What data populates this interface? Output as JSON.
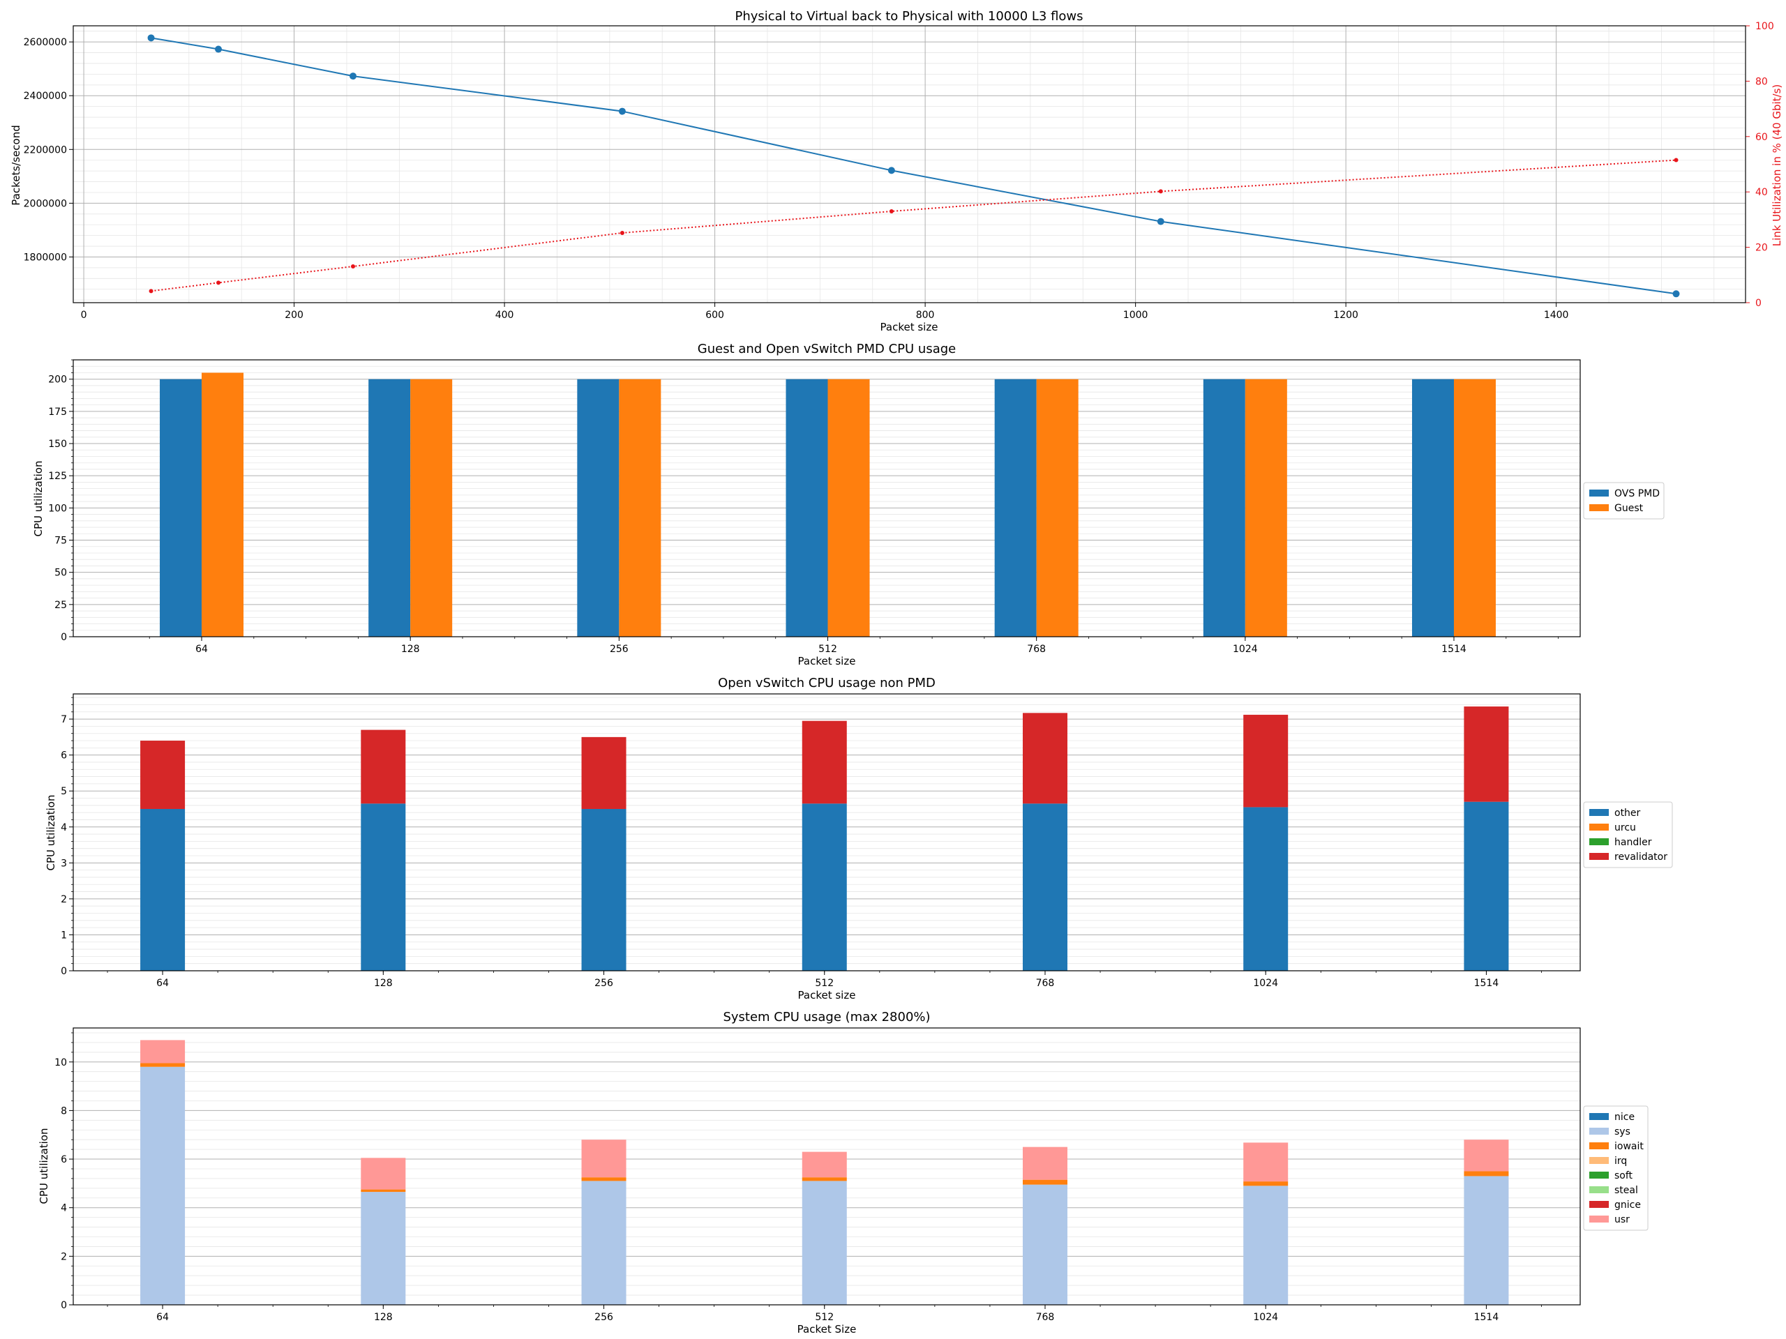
{
  "colors": {
    "blue": "#1f77b4",
    "orange": "#ff7f0e",
    "green": "#2ca02c",
    "red": "#d62728",
    "lightblue": "#aec7e8",
    "lightorange": "#ffbb78",
    "lightgreen": "#98df8a",
    "pink": "#ff9896",
    "secondary_axis": "#e8141a",
    "grid_major": "#b0b0b0",
    "grid_minor": "#e6e6e6"
  },
  "chart_data": [
    {
      "type": "line",
      "title": "Physical to Virtual back to Physical with 10000 L3 flows",
      "xlabel": "Packet size",
      "ylabel": "Packets/second",
      "y2label": "Link Utilization in % (40 Gbit/s)",
      "xlim": [
        -10,
        1580
      ],
      "ylim": [
        1630000,
        2660000
      ],
      "y2lim": [
        0,
        100
      ],
      "xticks": [
        0,
        200,
        400,
        600,
        800,
        1000,
        1200,
        1400
      ],
      "yticks": [
        1800000,
        2000000,
        2200000,
        2400000,
        2600000
      ],
      "y2ticks": [
        0,
        20,
        40,
        60,
        80,
        100
      ],
      "x": [
        64,
        128,
        256,
        512,
        768,
        1024,
        1514
      ],
      "series": [
        {
          "name": "Packets/second",
          "axis": "left",
          "style": "solid",
          "values": [
            2615000,
            2573000,
            2473000,
            2342000,
            2122000,
            1932000,
            1663000
          ]
        },
        {
          "name": "Link Utilization",
          "axis": "right",
          "style": "dotted",
          "values": [
            4.2,
            7.2,
            13.1,
            25.2,
            33.0,
            40.2,
            51.5
          ]
        }
      ],
      "grid": true
    },
    {
      "type": "bar",
      "title": "Guest and Open vSwitch PMD CPU usage",
      "xlabel": "Packet size",
      "ylabel": "CPU utilization",
      "ylim": [
        0,
        215
      ],
      "yticks": [
        0,
        25,
        50,
        75,
        100,
        125,
        150,
        175,
        200
      ],
      "categories": [
        "64",
        "128",
        "256",
        "512",
        "768",
        "1024",
        "1514"
      ],
      "series": [
        {
          "name": "OVS PMD",
          "color": "#1f77b4",
          "values": [
            200,
            200,
            200,
            200,
            200,
            200,
            200
          ]
        },
        {
          "name": "Guest",
          "color": "#ff7f0e",
          "values": [
            205,
            200,
            200,
            200,
            200,
            200,
            200
          ]
        }
      ],
      "legend": "right",
      "grid": true
    },
    {
      "type": "bar",
      "stacked": true,
      "title": "Open vSwitch CPU usage non PMD",
      "xlabel": "Packet size",
      "ylabel": "CPU utilization",
      "ylim": [
        0,
        7.7
      ],
      "yticks": [
        0,
        1,
        2,
        3,
        4,
        5,
        6,
        7
      ],
      "categories": [
        "64",
        "128",
        "256",
        "512",
        "768",
        "1024",
        "1514"
      ],
      "series": [
        {
          "name": "other",
          "color": "#1f77b4",
          "values": [
            4.5,
            4.65,
            4.5,
            4.65,
            4.65,
            4.55,
            4.7
          ]
        },
        {
          "name": "urcu",
          "color": "#ff7f0e",
          "values": [
            0,
            0,
            0,
            0,
            0,
            0,
            0
          ]
        },
        {
          "name": "handler",
          "color": "#2ca02c",
          "values": [
            0,
            0,
            0,
            0,
            0,
            0,
            0
          ]
        },
        {
          "name": "revalidator",
          "color": "#d62728",
          "values": [
            1.9,
            2.05,
            2.0,
            2.3,
            2.52,
            2.57,
            2.65
          ]
        }
      ],
      "legend": "right",
      "grid": true
    },
    {
      "type": "bar",
      "stacked": true,
      "title": "System CPU usage (max 2800%)",
      "xlabel": "Packet Size",
      "ylabel": "CPU utilization",
      "ylim": [
        0,
        11.4
      ],
      "yticks": [
        0,
        2,
        4,
        6,
        8,
        10
      ],
      "categories": [
        "64",
        "128",
        "256",
        "512",
        "768",
        "1024",
        "1514"
      ],
      "series": [
        {
          "name": "nice",
          "color": "#1f77b4",
          "values": [
            0,
            0,
            0,
            0,
            0,
            0,
            0
          ]
        },
        {
          "name": "sys",
          "color": "#aec7e8",
          "values": [
            9.8,
            4.65,
            5.1,
            5.1,
            4.95,
            4.9,
            5.3
          ]
        },
        {
          "name": "iowait",
          "color": "#ff7f0e",
          "values": [
            0.15,
            0.1,
            0.15,
            0.15,
            0.2,
            0.18,
            0.2
          ]
        },
        {
          "name": "irq",
          "color": "#ffbb78",
          "values": [
            0,
            0,
            0,
            0,
            0,
            0,
            0
          ]
        },
        {
          "name": "soft",
          "color": "#2ca02c",
          "values": [
            0,
            0,
            0,
            0,
            0,
            0,
            0
          ]
        },
        {
          "name": "steal",
          "color": "#98df8a",
          "values": [
            0,
            0,
            0,
            0,
            0,
            0,
            0
          ]
        },
        {
          "name": "gnice",
          "color": "#d62728",
          "values": [
            0,
            0,
            0,
            0,
            0,
            0,
            0
          ]
        },
        {
          "name": "usr",
          "color": "#ff9896",
          "values": [
            0.95,
            1.3,
            1.55,
            1.05,
            1.35,
            1.6,
            1.3
          ]
        }
      ],
      "legend": "right",
      "grid": true
    }
  ]
}
